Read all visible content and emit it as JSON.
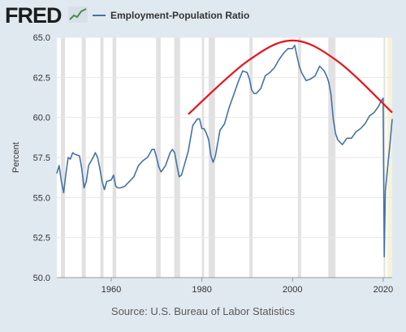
{
  "header": {
    "logo_text": "FRED",
    "logo_icon": "trend-line-icon"
  },
  "chart_data": {
    "type": "line",
    "title": "",
    "ylabel": "Percent",
    "xlabel": "",
    "xlim": [
      1948,
      2022
    ],
    "ylim": [
      50,
      65
    ],
    "y_ticks": [
      "50.0",
      "52.5",
      "55.0",
      "57.5",
      "60.0",
      "62.5",
      "65.0"
    ],
    "x_ticks": [
      "1960",
      "1980",
      "2000",
      "2020"
    ],
    "grid": "horizontal",
    "legend_position": "top",
    "series": [
      {
        "name": "Employment-Population Ratio",
        "color": "#4572a7",
        "x": [
          1948,
          1948.5,
          1949,
          1949.5,
          1950,
          1950.5,
          1951,
          1951.5,
          1952,
          1953,
          1953.5,
          1954,
          1954.5,
          1955,
          1956,
          1956.5,
          1957,
          1957.5,
          1958,
          1958.5,
          1959,
          1960,
          1960.5,
          1961,
          1961.5,
          1962,
          1963,
          1964,
          1965,
          1966,
          1967,
          1968,
          1969,
          1969.5,
          1970,
          1970.5,
          1971,
          1972,
          1973,
          1973.5,
          1974,
          1974.5,
          1975,
          1975.5,
          1976,
          1977,
          1978,
          1979,
          1979.5,
          1980,
          1980.5,
          1981,
          1981.5,
          1982,
          1982.5,
          1983,
          1984,
          1985,
          1986,
          1987,
          1988,
          1989,
          1990,
          1990.5,
          1991,
          1991.5,
          1992,
          1993,
          1994,
          1995,
          1996,
          1997,
          1998,
          1999,
          2000,
          2000.5,
          2001,
          2001.5,
          2002,
          2003,
          2004,
          2005,
          2006,
          2007,
          2007.5,
          2008,
          2008.5,
          2009,
          2009.5,
          2010,
          2011,
          2012,
          2013,
          2014,
          2015,
          2016,
          2017,
          2018,
          2019,
          2019.5,
          2020,
          2020.25,
          2020.5,
          2021,
          2021.5,
          2022
        ],
        "values": [
          56.5,
          57.0,
          56.0,
          55.3,
          56.5,
          57.5,
          57.4,
          57.8,
          57.7,
          57.6,
          56.8,
          55.6,
          56.0,
          57.0,
          57.5,
          57.8,
          57.5,
          56.8,
          56.0,
          55.5,
          56.0,
          56.1,
          56.4,
          55.7,
          55.6,
          55.6,
          55.7,
          56.0,
          56.3,
          57.0,
          57.3,
          57.5,
          58.0,
          58.0,
          57.5,
          56.9,
          56.6,
          57.0,
          57.8,
          58.0,
          57.8,
          57.0,
          56.3,
          56.4,
          56.9,
          57.9,
          59.5,
          59.9,
          59.9,
          59.3,
          59.3,
          59.0,
          58.6,
          57.6,
          57.2,
          57.6,
          59.2,
          59.6,
          60.6,
          61.4,
          62.2,
          62.9,
          62.8,
          62.4,
          61.7,
          61.5,
          61.5,
          61.8,
          62.6,
          62.8,
          63.1,
          63.6,
          64.0,
          64.3,
          64.3,
          64.5,
          63.8,
          63.2,
          62.8,
          62.3,
          62.4,
          62.6,
          63.2,
          62.9,
          62.6,
          62.2,
          61.4,
          59.9,
          59.0,
          58.6,
          58.3,
          58.7,
          58.7,
          59.1,
          59.3,
          59.6,
          60.1,
          60.3,
          60.7,
          61.0,
          61.2,
          51.3,
          55.4,
          56.9,
          58.3,
          59.9
        ]
      }
    ],
    "recessions": [
      [
        1948.9,
        1949.8
      ],
      [
        1953.5,
        1954.4
      ],
      [
        1957.6,
        1958.3
      ],
      [
        1960.3,
        1961.1
      ],
      [
        1969.9,
        1970.9
      ],
      [
        1973.9,
        1975.2
      ],
      [
        1980.0,
        1980.5
      ],
      [
        1981.5,
        1982.9
      ],
      [
        1990.5,
        1991.2
      ],
      [
        2001.2,
        2001.9
      ],
      [
        2007.9,
        2009.5
      ],
      [
        2020.1,
        2020.4
      ]
    ],
    "highlight_range": [
      2020.9,
      2022
    ],
    "annotation_curve": {
      "color": "#e8131b",
      "points": [
        [
          1977,
          60.2
        ],
        [
          1990,
          63.5
        ],
        [
          2000,
          64.8
        ],
        [
          2010,
          63.5
        ],
        [
          2022,
          60.3
        ]
      ]
    }
  },
  "source": "Source: U.S. Bureau of Labor Statistics"
}
